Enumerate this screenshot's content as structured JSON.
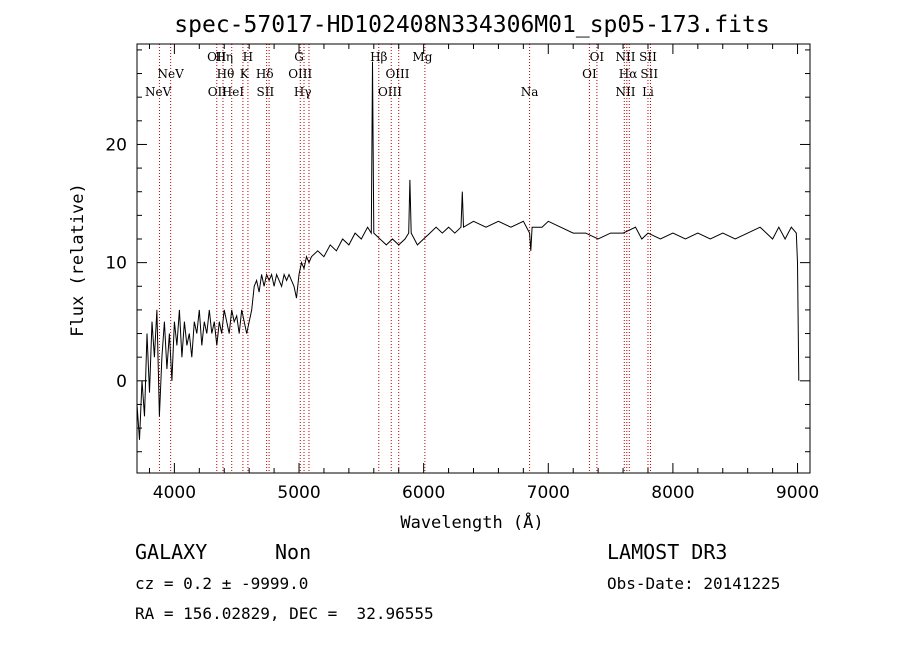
{
  "chart_data": {
    "type": "line",
    "title": "spec-57017-HD102408N334306M01_sp05-173.fits",
    "xlabel": "Wavelength (Å)",
    "ylabel": "Flux (relative)",
    "xlim": [
      3700,
      9100
    ],
    "ylim": [
      -7.8,
      28.5
    ],
    "xticks": [
      4000,
      5000,
      6000,
      7000,
      8000,
      9000
    ],
    "xtick_labels": [
      "4000",
      "5000",
      "6000",
      "7000",
      "8000",
      "9000"
    ],
    "yticks": [
      0,
      10,
      20
    ],
    "ytick_labels": [
      "0",
      "10",
      "20"
    ],
    "series": [
      {
        "name": "spectrum",
        "points": [
          [
            3700,
            -2
          ],
          [
            3720,
            -5
          ],
          [
            3740,
            0
          ],
          [
            3760,
            -3
          ],
          [
            3780,
            4
          ],
          [
            3800,
            -1
          ],
          [
            3820,
            5
          ],
          [
            3840,
            2
          ],
          [
            3860,
            6
          ],
          [
            3880,
            -3
          ],
          [
            3900,
            2
          ],
          [
            3920,
            5
          ],
          [
            3940,
            1
          ],
          [
            3960,
            4
          ],
          [
            3980,
            0
          ],
          [
            4000,
            5
          ],
          [
            4020,
            3
          ],
          [
            4040,
            6
          ],
          [
            4060,
            2
          ],
          [
            4080,
            5
          ],
          [
            4100,
            3
          ],
          [
            4120,
            4
          ],
          [
            4140,
            2
          ],
          [
            4160,
            5
          ],
          [
            4180,
            4
          ],
          [
            4200,
            6
          ],
          [
            4220,
            3
          ],
          [
            4240,
            5
          ],
          [
            4260,
            4
          ],
          [
            4280,
            6
          ],
          [
            4300,
            4
          ],
          [
            4320,
            5
          ],
          [
            4340,
            3
          ],
          [
            4360,
            5
          ],
          [
            4380,
            4
          ],
          [
            4400,
            6
          ],
          [
            4420,
            5
          ],
          [
            4440,
            4
          ],
          [
            4460,
            6
          ],
          [
            4480,
            5
          ],
          [
            4500,
            5.5
          ],
          [
            4520,
            4
          ],
          [
            4540,
            6
          ],
          [
            4560,
            5
          ],
          [
            4580,
            4
          ],
          [
            4600,
            5
          ],
          [
            4620,
            6
          ],
          [
            4640,
            8
          ],
          [
            4660,
            8.5
          ],
          [
            4680,
            7.5
          ],
          [
            4700,
            9
          ],
          [
            4720,
            8
          ],
          [
            4740,
            9
          ],
          [
            4760,
            8.5
          ],
          [
            4780,
            9
          ],
          [
            4800,
            8
          ],
          [
            4820,
            9
          ],
          [
            4840,
            8.5
          ],
          [
            4860,
            8
          ],
          [
            4880,
            9
          ],
          [
            4900,
            8.5
          ],
          [
            4920,
            9
          ],
          [
            4940,
            8.5
          ],
          [
            4960,
            8
          ],
          [
            4980,
            7
          ],
          [
            5000,
            9
          ],
          [
            5020,
            10
          ],
          [
            5040,
            9.5
          ],
          [
            5060,
            10.5
          ],
          [
            5080,
            10
          ],
          [
            5100,
            10.5
          ],
          [
            5150,
            11
          ],
          [
            5200,
            10.5
          ],
          [
            5250,
            11.5
          ],
          [
            5300,
            11
          ],
          [
            5350,
            12
          ],
          [
            5400,
            11.5
          ],
          [
            5450,
            12.5
          ],
          [
            5500,
            12
          ],
          [
            5550,
            13
          ],
          [
            5580,
            12.5
          ],
          [
            5590,
            27
          ],
          [
            5600,
            12.5
          ],
          [
            5650,
            12
          ],
          [
            5700,
            11.5
          ],
          [
            5750,
            12
          ],
          [
            5800,
            11.5
          ],
          [
            5850,
            12
          ],
          [
            5880,
            12.5
          ],
          [
            5890,
            17
          ],
          [
            5900,
            12.5
          ],
          [
            5950,
            11.5
          ],
          [
            6000,
            12
          ],
          [
            6050,
            12.5
          ],
          [
            6100,
            13
          ],
          [
            6150,
            12.5
          ],
          [
            6200,
            13
          ],
          [
            6250,
            12.5
          ],
          [
            6300,
            13
          ],
          [
            6310,
            16
          ],
          [
            6320,
            13
          ],
          [
            6400,
            13.5
          ],
          [
            6500,
            13
          ],
          [
            6600,
            13.5
          ],
          [
            6700,
            13
          ],
          [
            6800,
            13.5
          ],
          [
            6850,
            12.5
          ],
          [
            6860,
            11
          ],
          [
            6870,
            13
          ],
          [
            6950,
            13
          ],
          [
            7000,
            13.5
          ],
          [
            7100,
            13
          ],
          [
            7200,
            12.5
          ],
          [
            7300,
            12.5
          ],
          [
            7400,
            12
          ],
          [
            7500,
            12.5
          ],
          [
            7600,
            12.5
          ],
          [
            7700,
            13
          ],
          [
            7750,
            12
          ],
          [
            7800,
            12.5
          ],
          [
            7900,
            12
          ],
          [
            8000,
            12.5
          ],
          [
            8100,
            12
          ],
          [
            8200,
            12.5
          ],
          [
            8300,
            12
          ],
          [
            8400,
            12.5
          ],
          [
            8500,
            12
          ],
          [
            8600,
            12.5
          ],
          [
            8700,
            13
          ],
          [
            8750,
            12.5
          ],
          [
            8800,
            12
          ],
          [
            8850,
            13
          ],
          [
            8900,
            12
          ],
          [
            8950,
            13
          ],
          [
            8990,
            12.5
          ],
          [
            9000,
            10
          ],
          [
            9010,
            0
          ]
        ]
      }
    ],
    "lines": [
      {
        "label": "NeV",
        "x": 3870,
        "row": 3
      },
      {
        "label": "NeV",
        "x": 3970,
        "row": 2
      },
      {
        "label": "OII",
        "x": 4340,
        "row": 1
      },
      {
        "label": "Hη",
        "x": 4400,
        "row": 1
      },
      {
        "label": "Hθ",
        "x": 4410,
        "row": 2
      },
      {
        "label": "OII",
        "x": 4345,
        "row": 3
      },
      {
        "label": "HeI",
        "x": 4470,
        "row": 3
      },
      {
        "label": "H",
        "x": 4590,
        "row": 1
      },
      {
        "label": "K",
        "x": 4560,
        "row": 2
      },
      {
        "label": "Hδ",
        "x": 4725,
        "row": 2
      },
      {
        "label": "SII",
        "x": 4730,
        "row": 3
      },
      {
        "label": "G",
        "x": 5000,
        "row": 1
      },
      {
        "label": "OIII",
        "x": 5010,
        "row": 2
      },
      {
        "label": "Hγ",
        "x": 5030,
        "row": 3
      },
      {
        "label": "Hβ",
        "x": 5640,
        "row": 1
      },
      {
        "label": "OIII",
        "x": 5790,
        "row": 2
      },
      {
        "label": "OIII",
        "x": 5730,
        "row": 3
      },
      {
        "label": "Mg",
        "x": 5990,
        "row": 1
      },
      {
        "label": "Na",
        "x": 6850,
        "row": 3
      },
      {
        "label": "OI",
        "x": 7390,
        "row": 1
      },
      {
        "label": "OI",
        "x": 7330,
        "row": 2
      },
      {
        "label": "NII",
        "x": 7620,
        "row": 1
      },
      {
        "label": "Hα",
        "x": 7640,
        "row": 2
      },
      {
        "label": "NII",
        "x": 7620,
        "row": 3
      },
      {
        "label": "SII",
        "x": 7800,
        "row": 1
      },
      {
        "label": "SII",
        "x": 7810,
        "row": 2
      },
      {
        "label": "Li",
        "x": 7800,
        "row": 3
      }
    ],
    "line_positions": [
      3880,
      3970,
      4340,
      4390,
      4460,
      4550,
      4590,
      4740,
      4760,
      5010,
      5040,
      5080,
      5640,
      5740,
      5800,
      6010,
      6850,
      7330,
      7390,
      7610,
      7630,
      7650,
      7800,
      7820
    ]
  },
  "footer": {
    "classification": "GALAXY",
    "subclass": "Non",
    "survey": "LAMOST DR3",
    "cz": "cz = 0.2 ± -9999.0",
    "obs_date": "Obs-Date: 20141225",
    "coords": "RA = 156.02829, DEC =  32.96555"
  },
  "colors": {
    "spectrum": "#000000",
    "line_marker": "#c00000",
    "axis": "#000000"
  }
}
